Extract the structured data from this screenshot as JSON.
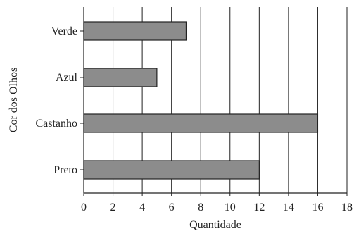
{
  "chart_data": {
    "type": "bar",
    "orientation": "horizontal",
    "categories": [
      "Verde",
      "Azul",
      "Castanho",
      "Preto"
    ],
    "values": [
      7,
      5,
      16,
      12
    ],
    "xlabel": "Quantidade",
    "ylabel": "Cor dos Olhos",
    "xlim": [
      0,
      18
    ],
    "xticks": [
      0,
      2,
      4,
      6,
      8,
      10,
      12,
      14,
      16,
      18
    ],
    "grid": "vertical",
    "bar_color": "#8c8c8c",
    "bar_edge_color": "#222222"
  }
}
